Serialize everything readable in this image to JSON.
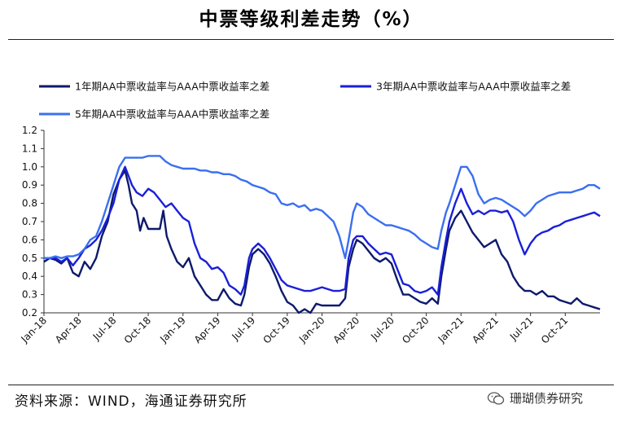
{
  "header": {
    "title": "中票等级利差走势（%）"
  },
  "footer": {
    "source": "资料来源：WIND，海通证券研究所",
    "watermark": "珊瑚债券研究"
  },
  "chart_data": {
    "type": "line",
    "title": "中票等级利差走势（%）",
    "xlabel": "",
    "ylabel": "",
    "ylim": [
      0.2,
      1.2
    ],
    "yticks": [
      "0.2",
      "0.3",
      "0.4",
      "0.5",
      "0.6",
      "0.7",
      "0.8",
      "0.9",
      "1.0",
      "1.1",
      "1.2"
    ],
    "xlim": [
      0,
      48
    ],
    "xticks": [
      {
        "label": "Jan-18",
        "x": 0
      },
      {
        "label": "Apr-18",
        "x": 3
      },
      {
        "label": "Jul-18",
        "x": 6
      },
      {
        "label": "Oct-18",
        "x": 9
      },
      {
        "label": "Jan-19",
        "x": 12
      },
      {
        "label": "Apr-19",
        "x": 15
      },
      {
        "label": "Jul-19",
        "x": 18
      },
      {
        "label": "Oct-19",
        "x": 21
      },
      {
        "label": "Jan-20",
        "x": 24
      },
      {
        "label": "Apr-20",
        "x": 27
      },
      {
        "label": "Jul-20",
        "x": 30
      },
      {
        "label": "Oct-20",
        "x": 33
      },
      {
        "label": "Jan-21",
        "x": 36
      },
      {
        "label": "Apr-21",
        "x": 39
      },
      {
        "label": "Jul-21",
        "x": 42
      },
      {
        "label": "Oct-21",
        "x": 45
      }
    ],
    "grid": false,
    "legend_position": "top",
    "series": [
      {
        "name": "1年期AA中票收益率与AAA中票收益率之差",
        "color": "#0d1a6b",
        "points": [
          [
            0,
            0.48
          ],
          [
            0.5,
            0.5
          ],
          [
            1,
            0.49
          ],
          [
            1.5,
            0.47
          ],
          [
            2,
            0.5
          ],
          [
            2.5,
            0.42
          ],
          [
            3,
            0.4
          ],
          [
            3.5,
            0.48
          ],
          [
            4,
            0.44
          ],
          [
            4.5,
            0.5
          ],
          [
            5,
            0.62
          ],
          [
            5.5,
            0.7
          ],
          [
            6,
            0.85
          ],
          [
            6.5,
            0.93
          ],
          [
            7,
            0.98
          ],
          [
            7.3,
            0.9
          ],
          [
            7.6,
            0.8
          ],
          [
            8,
            0.76
          ],
          [
            8.3,
            0.65
          ],
          [
            8.6,
            0.72
          ],
          [
            9,
            0.66
          ],
          [
            9.5,
            0.66
          ],
          [
            10,
            0.66
          ],
          [
            10.3,
            0.76
          ],
          [
            10.6,
            0.62
          ],
          [
            11,
            0.55
          ],
          [
            11.5,
            0.48
          ],
          [
            12,
            0.45
          ],
          [
            12.5,
            0.5
          ],
          [
            13,
            0.4
          ],
          [
            13.5,
            0.35
          ],
          [
            14,
            0.3
          ],
          [
            14.5,
            0.27
          ],
          [
            15,
            0.27
          ],
          [
            15.5,
            0.33
          ],
          [
            16,
            0.28
          ],
          [
            16.5,
            0.25
          ],
          [
            17,
            0.24
          ],
          [
            17.3,
            0.3
          ],
          [
            17.7,
            0.45
          ],
          [
            18,
            0.52
          ],
          [
            18.5,
            0.55
          ],
          [
            19,
            0.52
          ],
          [
            19.5,
            0.47
          ],
          [
            20,
            0.4
          ],
          [
            20.5,
            0.32
          ],
          [
            21,
            0.26
          ],
          [
            21.5,
            0.24
          ],
          [
            22,
            0.2
          ],
          [
            22.5,
            0.22
          ],
          [
            23,
            0.2
          ],
          [
            23.5,
            0.25
          ],
          [
            24,
            0.24
          ],
          [
            24.5,
            0.24
          ],
          [
            25,
            0.24
          ],
          [
            25.5,
            0.24
          ],
          [
            26,
            0.28
          ],
          [
            26.3,
            0.45
          ],
          [
            26.7,
            0.55
          ],
          [
            27,
            0.6
          ],
          [
            27.5,
            0.58
          ],
          [
            28,
            0.54
          ],
          [
            28.5,
            0.5
          ],
          [
            29,
            0.48
          ],
          [
            29.5,
            0.5
          ],
          [
            30,
            0.47
          ],
          [
            30.5,
            0.38
          ],
          [
            31,
            0.3
          ],
          [
            31.5,
            0.3
          ],
          [
            32,
            0.28
          ],
          [
            32.5,
            0.26
          ],
          [
            33,
            0.25
          ],
          [
            33.5,
            0.28
          ],
          [
            34,
            0.25
          ],
          [
            34.3,
            0.4
          ],
          [
            34.7,
            0.55
          ],
          [
            35,
            0.65
          ],
          [
            35.5,
            0.72
          ],
          [
            36,
            0.76
          ],
          [
            36.5,
            0.7
          ],
          [
            37,
            0.64
          ],
          [
            37.5,
            0.6
          ],
          [
            38,
            0.56
          ],
          [
            38.5,
            0.58
          ],
          [
            39,
            0.6
          ],
          [
            39.5,
            0.52
          ],
          [
            40,
            0.48
          ],
          [
            40.5,
            0.4
          ],
          [
            41,
            0.35
          ],
          [
            41.5,
            0.32
          ],
          [
            42,
            0.32
          ],
          [
            42.5,
            0.3
          ],
          [
            43,
            0.32
          ],
          [
            43.5,
            0.29
          ],
          [
            44,
            0.29
          ],
          [
            44.5,
            0.27
          ],
          [
            45,
            0.26
          ],
          [
            45.5,
            0.25
          ],
          [
            46,
            0.28
          ],
          [
            46.5,
            0.25
          ],
          [
            47,
            0.24
          ],
          [
            47.5,
            0.23
          ],
          [
            48,
            0.22
          ]
        ]
      },
      {
        "name": "3年期AA中票收益率与AAA中票收益率之差",
        "color": "#1a1fd9",
        "points": [
          [
            0,
            0.5
          ],
          [
            0.5,
            0.5
          ],
          [
            1,
            0.5
          ],
          [
            1.5,
            0.48
          ],
          [
            2,
            0.5
          ],
          [
            2.5,
            0.46
          ],
          [
            3,
            0.5
          ],
          [
            3.5,
            0.55
          ],
          [
            4,
            0.57
          ],
          [
            4.5,
            0.6
          ],
          [
            5,
            0.65
          ],
          [
            5.5,
            0.72
          ],
          [
            6,
            0.8
          ],
          [
            6.5,
            0.93
          ],
          [
            7,
            1.0
          ],
          [
            7.3,
            0.95
          ],
          [
            7.6,
            0.9
          ],
          [
            8,
            0.86
          ],
          [
            8.5,
            0.84
          ],
          [
            9,
            0.88
          ],
          [
            9.5,
            0.86
          ],
          [
            10,
            0.82
          ],
          [
            10.5,
            0.78
          ],
          [
            11,
            0.8
          ],
          [
            11.5,
            0.76
          ],
          [
            12,
            0.72
          ],
          [
            12.5,
            0.7
          ],
          [
            13,
            0.58
          ],
          [
            13.5,
            0.5
          ],
          [
            14,
            0.48
          ],
          [
            14.5,
            0.44
          ],
          [
            15,
            0.45
          ],
          [
            15.5,
            0.42
          ],
          [
            16,
            0.35
          ],
          [
            16.5,
            0.33
          ],
          [
            17,
            0.3
          ],
          [
            17.3,
            0.35
          ],
          [
            17.7,
            0.5
          ],
          [
            18,
            0.55
          ],
          [
            18.5,
            0.58
          ],
          [
            19,
            0.55
          ],
          [
            19.5,
            0.5
          ],
          [
            20,
            0.44
          ],
          [
            20.5,
            0.38
          ],
          [
            21,
            0.35
          ],
          [
            21.5,
            0.34
          ],
          [
            22,
            0.33
          ],
          [
            22.5,
            0.32
          ],
          [
            23,
            0.32
          ],
          [
            23.5,
            0.33
          ],
          [
            24,
            0.34
          ],
          [
            24.5,
            0.33
          ],
          [
            25,
            0.32
          ],
          [
            25.5,
            0.32
          ],
          [
            26,
            0.33
          ],
          [
            26.3,
            0.5
          ],
          [
            26.7,
            0.6
          ],
          [
            27,
            0.62
          ],
          [
            27.5,
            0.62
          ],
          [
            28,
            0.58
          ],
          [
            28.5,
            0.55
          ],
          [
            29,
            0.52
          ],
          [
            29.5,
            0.53
          ],
          [
            30,
            0.52
          ],
          [
            30.5,
            0.44
          ],
          [
            31,
            0.36
          ],
          [
            31.5,
            0.35
          ],
          [
            32,
            0.32
          ],
          [
            32.5,
            0.31
          ],
          [
            33,
            0.32
          ],
          [
            33.5,
            0.34
          ],
          [
            34,
            0.3
          ],
          [
            34.3,
            0.45
          ],
          [
            34.7,
            0.6
          ],
          [
            35,
            0.7
          ],
          [
            35.5,
            0.8
          ],
          [
            36,
            0.88
          ],
          [
            36.5,
            0.8
          ],
          [
            37,
            0.74
          ],
          [
            37.5,
            0.76
          ],
          [
            38,
            0.74
          ],
          [
            38.5,
            0.76
          ],
          [
            39,
            0.76
          ],
          [
            39.5,
            0.75
          ],
          [
            40,
            0.76
          ],
          [
            40.5,
            0.7
          ],
          [
            41,
            0.6
          ],
          [
            41.5,
            0.52
          ],
          [
            42,
            0.58
          ],
          [
            42.5,
            0.62
          ],
          [
            43,
            0.64
          ],
          [
            43.5,
            0.65
          ],
          [
            44,
            0.67
          ],
          [
            44.5,
            0.68
          ],
          [
            45,
            0.7
          ],
          [
            45.5,
            0.71
          ],
          [
            46,
            0.72
          ],
          [
            46.5,
            0.73
          ],
          [
            47,
            0.74
          ],
          [
            47.5,
            0.75
          ],
          [
            48,
            0.73
          ]
        ]
      },
      {
        "name": "5年期AA中票收益率与AAA中票收益率之差",
        "color": "#3a6ff0",
        "points": [
          [
            0,
            0.5
          ],
          [
            0.5,
            0.5
          ],
          [
            1,
            0.51
          ],
          [
            1.5,
            0.5
          ],
          [
            2,
            0.51
          ],
          [
            2.5,
            0.51
          ],
          [
            3,
            0.52
          ],
          [
            3.5,
            0.55
          ],
          [
            4,
            0.6
          ],
          [
            4.5,
            0.62
          ],
          [
            5,
            0.7
          ],
          [
            5.5,
            0.8
          ],
          [
            6,
            0.9
          ],
          [
            6.5,
            1.0
          ],
          [
            7,
            1.05
          ],
          [
            7.5,
            1.05
          ],
          [
            8,
            1.05
          ],
          [
            8.5,
            1.05
          ],
          [
            9,
            1.06
          ],
          [
            9.5,
            1.06
          ],
          [
            10,
            1.06
          ],
          [
            10.5,
            1.03
          ],
          [
            11,
            1.01
          ],
          [
            11.5,
            1.0
          ],
          [
            12,
            0.99
          ],
          [
            12.5,
            0.99
          ],
          [
            13,
            0.99
          ],
          [
            13.5,
            0.98
          ],
          [
            14,
            0.98
          ],
          [
            14.5,
            0.97
          ],
          [
            15,
            0.97
          ],
          [
            15.5,
            0.96
          ],
          [
            16,
            0.96
          ],
          [
            16.5,
            0.95
          ],
          [
            17,
            0.93
          ],
          [
            17.5,
            0.92
          ],
          [
            18,
            0.9
          ],
          [
            18.5,
            0.89
          ],
          [
            19,
            0.88
          ],
          [
            19.5,
            0.86
          ],
          [
            20,
            0.85
          ],
          [
            20.5,
            0.8
          ],
          [
            21,
            0.79
          ],
          [
            21.5,
            0.8
          ],
          [
            22,
            0.78
          ],
          [
            22.5,
            0.79
          ],
          [
            23,
            0.76
          ],
          [
            23.5,
            0.77
          ],
          [
            24,
            0.76
          ],
          [
            24.5,
            0.73
          ],
          [
            25,
            0.7
          ],
          [
            25.5,
            0.62
          ],
          [
            26,
            0.5
          ],
          [
            26.3,
            0.6
          ],
          [
            26.7,
            0.75
          ],
          [
            27,
            0.8
          ],
          [
            27.5,
            0.78
          ],
          [
            28,
            0.74
          ],
          [
            28.5,
            0.72
          ],
          [
            29,
            0.7
          ],
          [
            29.5,
            0.68
          ],
          [
            30,
            0.68
          ],
          [
            30.5,
            0.67
          ],
          [
            31,
            0.66
          ],
          [
            31.5,
            0.65
          ],
          [
            32,
            0.63
          ],
          [
            32.5,
            0.6
          ],
          [
            33,
            0.58
          ],
          [
            33.5,
            0.56
          ],
          [
            34,
            0.55
          ],
          [
            34.3,
            0.65
          ],
          [
            34.7,
            0.75
          ],
          [
            35,
            0.8
          ],
          [
            35.5,
            0.9
          ],
          [
            36,
            1.0
          ],
          [
            36.5,
            1.0
          ],
          [
            37,
            0.95
          ],
          [
            37.5,
            0.85
          ],
          [
            38,
            0.8
          ],
          [
            38.5,
            0.82
          ],
          [
            39,
            0.83
          ],
          [
            39.5,
            0.82
          ],
          [
            40,
            0.8
          ],
          [
            40.5,
            0.78
          ],
          [
            41,
            0.76
          ],
          [
            41.5,
            0.73
          ],
          [
            42,
            0.76
          ],
          [
            42.5,
            0.8
          ],
          [
            43,
            0.82
          ],
          [
            43.5,
            0.84
          ],
          [
            44,
            0.85
          ],
          [
            44.5,
            0.86
          ],
          [
            45,
            0.86
          ],
          [
            45.5,
            0.86
          ],
          [
            46,
            0.87
          ],
          [
            46.5,
            0.88
          ],
          [
            47,
            0.9
          ],
          [
            47.5,
            0.9
          ],
          [
            48,
            0.88
          ]
        ]
      }
    ]
  }
}
